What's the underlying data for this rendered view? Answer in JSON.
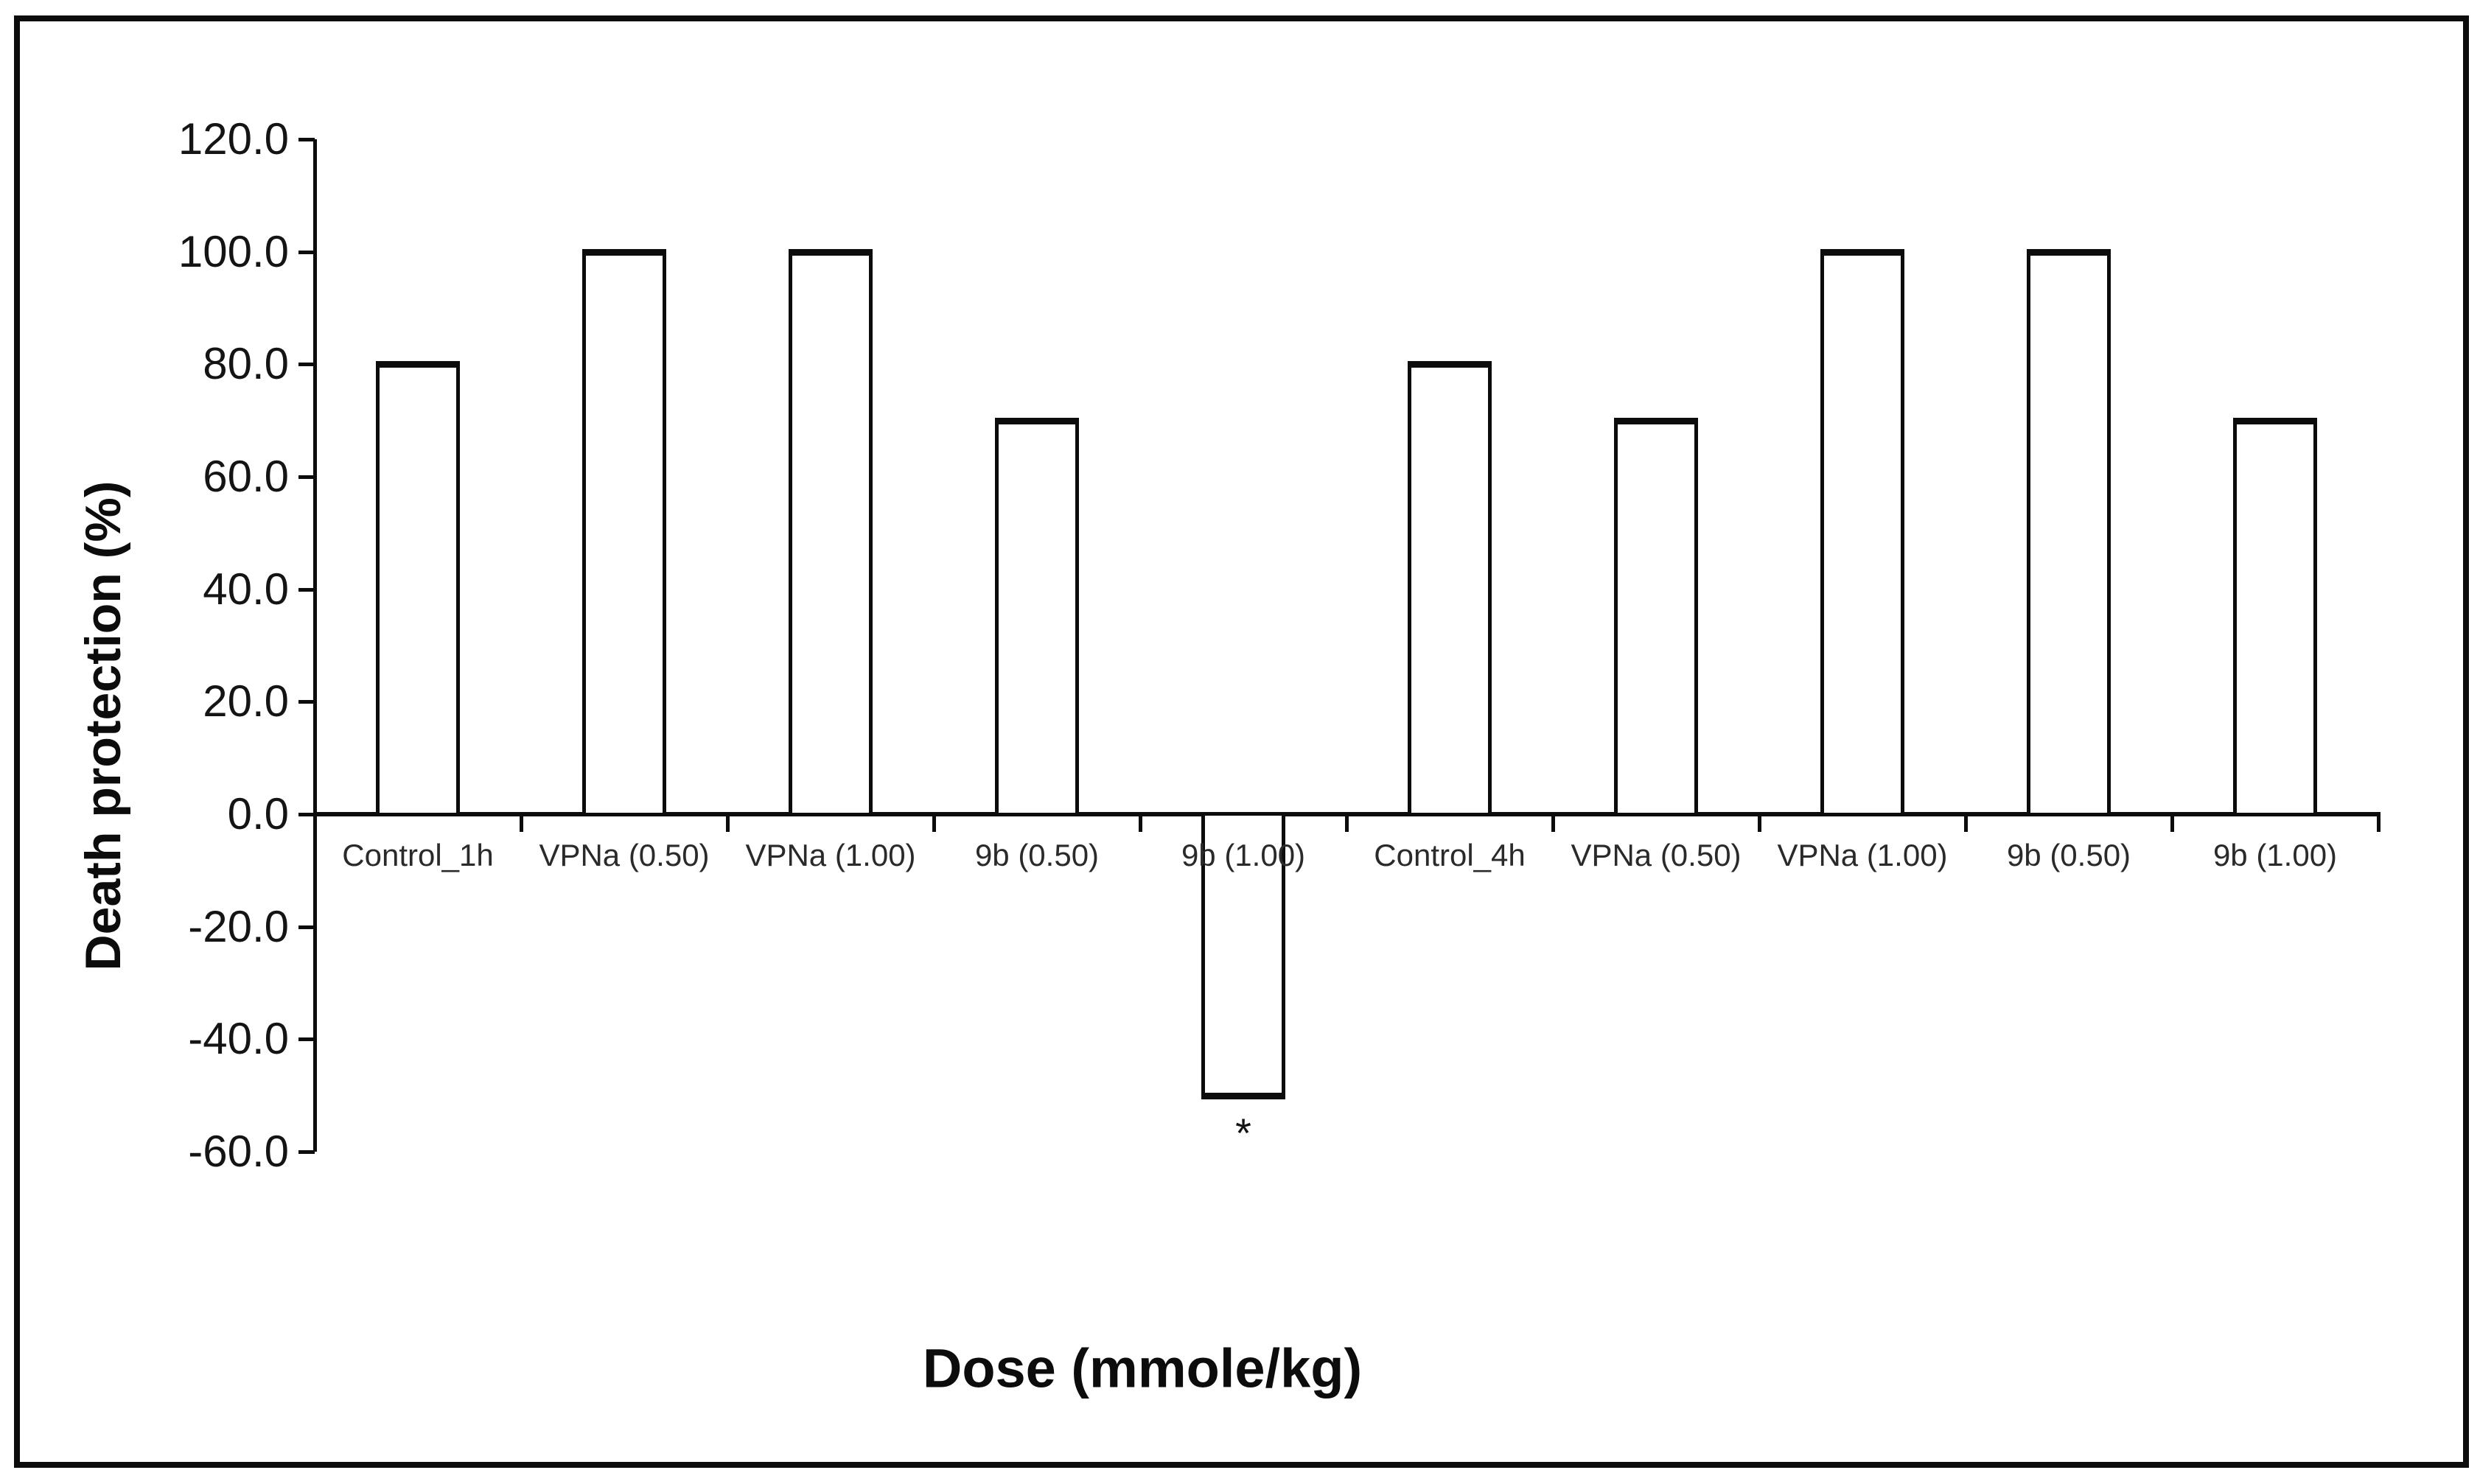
{
  "chart_data": {
    "type": "bar",
    "title": "",
    "xlabel": "Dose (mmole/kg)",
    "ylabel": "Death protection (%)",
    "ylim": [
      -60,
      120
    ],
    "ytick_step": 20,
    "ytick_labels": [
      "120.0",
      "100.0",
      "80.0",
      "60.0",
      "40.0",
      "20.0",
      "0.0",
      "-20.0",
      "-40.0",
      "-60.0"
    ],
    "ytick_values": [
      120,
      100,
      80,
      60,
      40,
      20,
      0,
      -20,
      -40,
      -60
    ],
    "categories": [
      "Control_1h",
      "VPNa (0.50)",
      "VPNa (1.00)",
      "9b (0.50)",
      "9b (1.00)",
      "Control_4h",
      "VPNa (0.50)",
      "VPNa (1.00)",
      "9b (0.50)",
      "9b (1.00)"
    ],
    "values": [
      80,
      100,
      100,
      70,
      -50,
      80,
      70,
      100,
      100,
      70
    ],
    "annotations": [
      {
        "category_index": 4,
        "text": "*",
        "position": "below-bar"
      }
    ],
    "grid": false,
    "legend": false,
    "bar_fill": "#ffffff",
    "bar_border": "#0c0c0c",
    "background": "#ffffff",
    "frame_color": "#0c0c0c"
  }
}
